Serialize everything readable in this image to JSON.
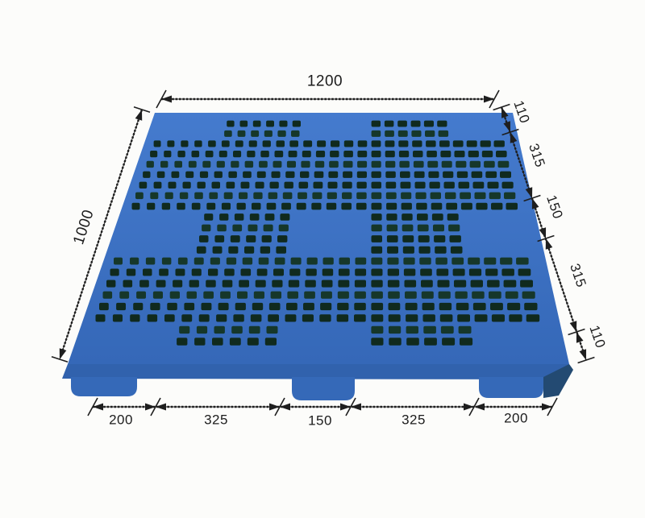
{
  "diagram": {
    "subject": "plastic pallet perspective drawing",
    "dimensions": {
      "top": {
        "label": "1200"
      },
      "left": {
        "label": "1000"
      },
      "right": {
        "segments": [
          "110",
          "315",
          "150",
          "315",
          "110"
        ]
      },
      "bottom": {
        "segments": [
          "200",
          "325",
          "150",
          "325",
          "200"
        ]
      }
    },
    "colors": {
      "background": "#fcfcfa",
      "deck_top_light": "#457bce",
      "deck_top_dark": "#3568b8",
      "deck_front": "#3162ad",
      "foot": "#3569b8",
      "foot_side_shadow": "#234a72",
      "hole_dark": "#102a1e",
      "hole_mid": "#16372a",
      "line": "#1e1e1e"
    }
  }
}
